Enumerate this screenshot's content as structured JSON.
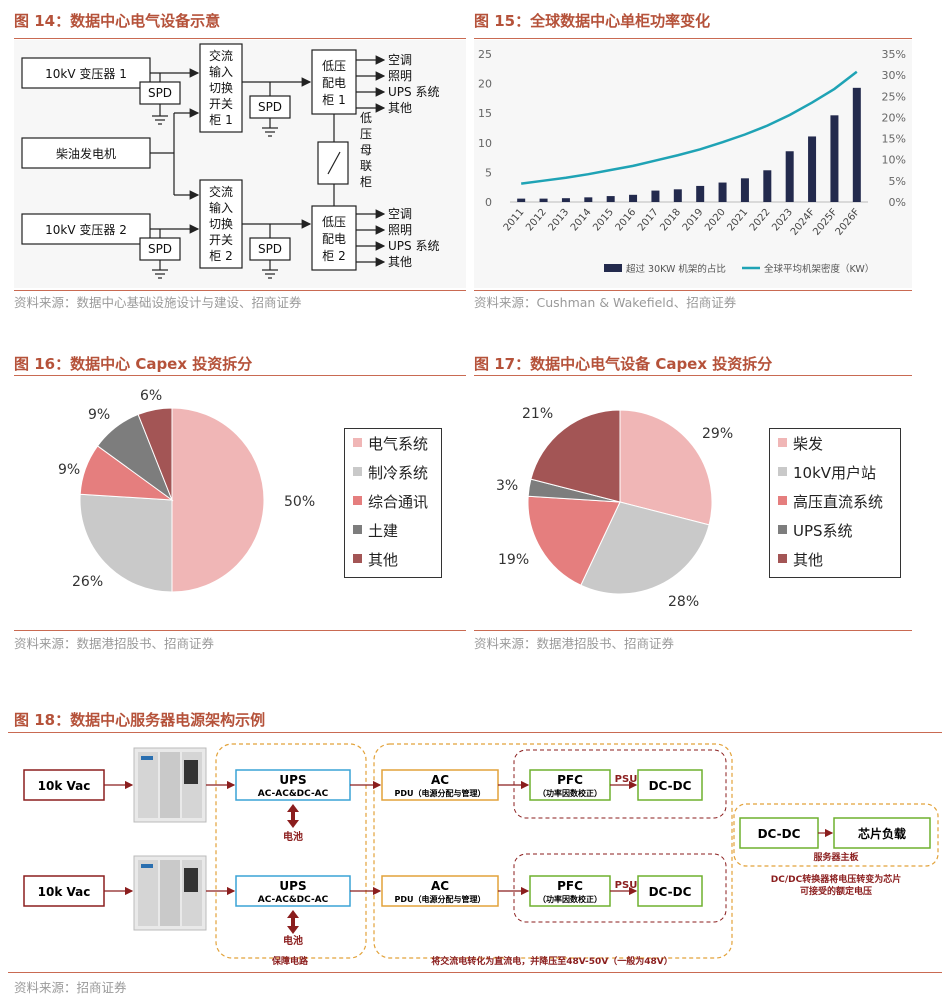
{
  "fig14": {
    "title": "图 14：数据中心电气设备示意",
    "source": "资料来源：数据中心基础设施设计与建设、招商证券",
    "labels": {
      "transformer1": "10kV 变压器 1",
      "transformer2": "10kV 变压器 2",
      "generator": "柴油发电机",
      "spd": "SPD",
      "ats1": [
        "交流",
        "输入",
        "切换",
        "开关",
        "柜 1"
      ],
      "ats2": [
        "交流",
        "输入",
        "切换",
        "开关",
        "柜 2"
      ],
      "lv1": [
        "低压",
        "配电",
        "柜 1"
      ],
      "lv2": [
        "低压",
        "配电",
        "柜 2"
      ],
      "bus_tie": [
        "低",
        "压",
        "母",
        "联",
        "柜"
      ],
      "outputs": [
        "空调",
        "照明",
        "UPS 系统",
        "其他"
      ]
    }
  },
  "fig15": {
    "title": "图 15：全球数据中心单柜功率变化",
    "source": "资料来源：Cushman & Wakefield、招商证券",
    "chart_data": {
      "type": "bar",
      "categories": [
        "2011",
        "2012",
        "2013",
        "2014",
        "2015",
        "2016",
        "2017",
        "2018",
        "2019",
        "2020",
        "2021",
        "2022",
        "2023",
        "2024F",
        "2025F",
        "2026F"
      ],
      "series": [
        {
          "name": "超过 30KW 机架的占比",
          "type": "bar",
          "axis": "right",
          "values": [
            0.8,
            0.8,
            0.9,
            1.1,
            1.4,
            1.7,
            2.7,
            3.0,
            3.8,
            4.6,
            5.6,
            7.5,
            12.0,
            15.5,
            20.5,
            27.0
          ]
        },
        {
          "name": "全球平均机架密度（KW）",
          "type": "line",
          "axis": "left",
          "values": [
            3.1,
            3.6,
            4.1,
            4.7,
            5.4,
            6.1,
            7.0,
            7.9,
            8.9,
            10.1,
            11.4,
            12.9,
            14.7,
            16.8,
            19.1,
            22.0
          ]
        }
      ],
      "left_axis": {
        "ylim": [
          0,
          25
        ],
        "ticks": [
          "0",
          "5",
          "10",
          "15",
          "20",
          "25"
        ]
      },
      "right_axis": {
        "ylim": [
          0,
          35
        ],
        "ticks": [
          "0%",
          "5%",
          "10%",
          "15%",
          "20%",
          "25%",
          "30%",
          "35%"
        ]
      },
      "legend_position": "bottom",
      "colors": {
        "bar": "#232a4d",
        "line": "#1fa3b5"
      }
    }
  },
  "fig16": {
    "title": "图 16：数据中心 Capex 投资拆分",
    "source": "资料来源：数据港招股书、招商证券",
    "chart_data": {
      "type": "pie",
      "labels": [
        "电气系统",
        "制冷系统",
        "综合通讯",
        "土建",
        "其他"
      ],
      "values": [
        50,
        26,
        9,
        9,
        6
      ],
      "value_labels": [
        "50%",
        "26%",
        "9%",
        "9%",
        "6%"
      ],
      "colors": [
        "#f0b6b6",
        "#c9c9c9",
        "#e57e7e",
        "#7d7d7d",
        "#a35555"
      ],
      "legend_position": "right"
    }
  },
  "fig17": {
    "title": "图 17：数据中心电气设备 Capex 投资拆分",
    "source": "资料来源：数据港招股书、招商证券",
    "chart_data": {
      "type": "pie",
      "labels": [
        "柴发",
        "10kV用户站",
        "高压直流系统",
        "UPS系统",
        "其他"
      ],
      "values": [
        29,
        28,
        19,
        3,
        21
      ],
      "value_labels": [
        "29%",
        "28%",
        "19%",
        "3%",
        "21%"
      ],
      "colors": [
        "#f0b6b6",
        "#c9c9c9",
        "#e57e7e",
        "#7d7d7d",
        "#a35555"
      ],
      "legend_position": "right"
    }
  },
  "fig18": {
    "title": "图 18：数据中心服务器电源架构示例",
    "source": "资料来源：招商证券",
    "labels": {
      "input": "10k Vac",
      "ups": "UPS",
      "ups_sub": "AC-AC&DC-AC",
      "battery": "电池",
      "ac": "AC",
      "pdu": "PDU（电源分配与管理）",
      "pfc": "PFC",
      "pfc_sub": "（功率因数校正）",
      "psu": "PSU",
      "dcdc": "DC-DC",
      "chip": "芯片负载",
      "mainboard": "服务器主板",
      "guarantee": "保障电路",
      "note1": "DC/DC转换器将电压转变为芯片",
      "note2": "可接受的额定电压",
      "bottom_note": "将交流电转化为直流电，并降压至48V-50V（一般为48V）"
    }
  }
}
